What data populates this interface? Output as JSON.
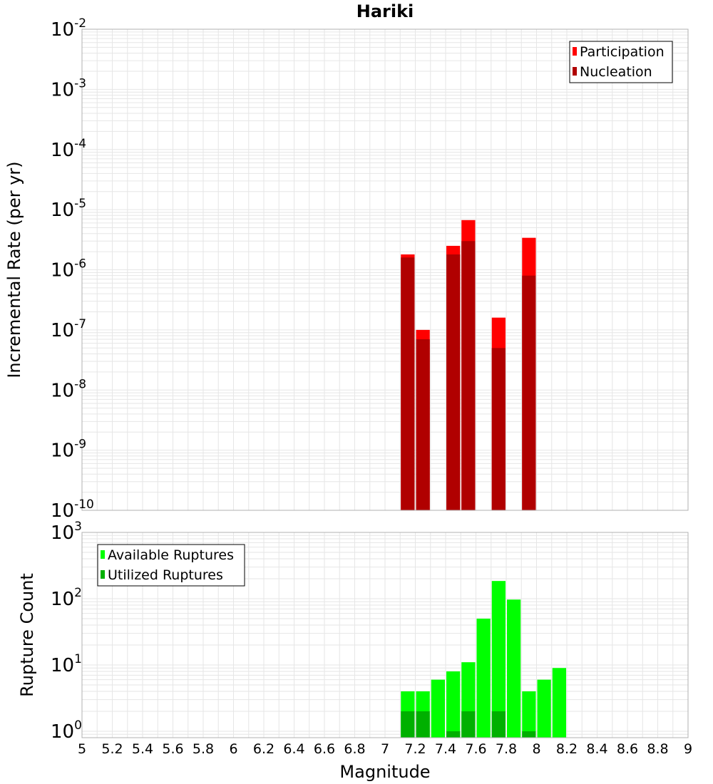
{
  "chart_data": [
    {
      "type": "bar",
      "title": "Hariki",
      "ylabel": "Incremental Rate (per yr)",
      "xlabel": "",
      "yscale": "log",
      "ylim": [
        1e-10,
        0.01
      ],
      "xlim": [
        5,
        9
      ],
      "bin_width": 0.1,
      "ytick_exponents": [
        "-2",
        "-3",
        "-4",
        "-5",
        "-6",
        "-7",
        "-8",
        "-9",
        "-10"
      ],
      "ytick_base": "10",
      "legend_position": "top-right",
      "series": [
        {
          "name": "Participation",
          "color": "#ff0000",
          "x": [
            7.15,
            7.25,
            7.45,
            7.55,
            7.75,
            7.95
          ],
          "values": [
            1.8e-06,
            1e-07,
            2.5e-06,
            6.7e-06,
            1.6e-07,
            3.4e-06
          ]
        },
        {
          "name": "Nucleation",
          "color": "#b00000",
          "x": [
            7.15,
            7.25,
            7.45,
            7.55,
            7.75,
            7.95
          ],
          "values": [
            1.6e-06,
            7e-08,
            1.8e-06,
            3e-06,
            5e-08,
            8e-07
          ]
        }
      ]
    },
    {
      "type": "bar",
      "title": "",
      "ylabel": "Rupture Count",
      "xlabel": "Magnitude",
      "yscale": "log",
      "ylim": [
        0.8,
        1000
      ],
      "xlim": [
        5,
        9
      ],
      "bin_width": 0.1,
      "ytick_exponents": [
        "3",
        "2",
        "1",
        "0"
      ],
      "ytick_base": "10",
      "legend_position": "top-left",
      "x_ticks": [
        "5",
        "5.2",
        "5.4",
        "5.6",
        "5.8",
        "6",
        "6.2",
        "6.4",
        "6.6",
        "6.8",
        "7",
        "7.2",
        "7.4",
        "7.6",
        "7.8",
        "8",
        "8.2",
        "8.4",
        "8.6",
        "8.8",
        "9"
      ],
      "series": [
        {
          "name": "Available Ruptures",
          "color": "#00ff00",
          "x": [
            7.15,
            7.25,
            7.35,
            7.45,
            7.55,
            7.65,
            7.75,
            7.85,
            7.95,
            8.05,
            8.15
          ],
          "values": [
            4,
            4,
            6,
            8,
            11,
            50,
            185,
            97,
            4,
            6,
            9
          ]
        },
        {
          "name": "Utilized Ruptures",
          "color": "#00b000",
          "x": [
            7.15,
            7.25,
            7.45,
            7.55,
            7.75,
            7.95
          ],
          "values": [
            2,
            2,
            1,
            2,
            2,
            1
          ]
        }
      ]
    }
  ]
}
